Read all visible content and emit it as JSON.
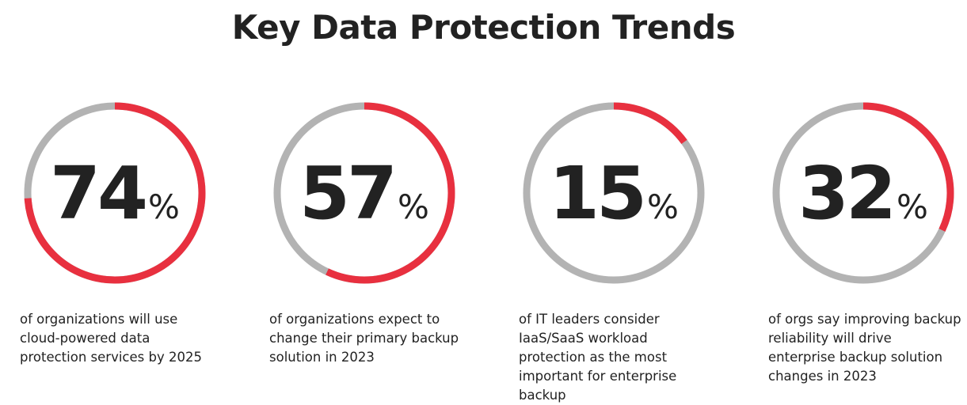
{
  "title": "Key Data Protection Trends",
  "chart_data": [
    {
      "type": "donut",
      "value": 74,
      "unit": "%",
      "caption": "of organizations will use cloud-powered data protection services by 2025",
      "color": "#e8303f",
      "track_color": "#b3b3b3"
    },
    {
      "type": "donut",
      "value": 57,
      "unit": "%",
      "caption": "of organizations expect to change their primary backup solution in 2023",
      "color": "#e8303f",
      "track_color": "#b3b3b3"
    },
    {
      "type": "donut",
      "value": 15,
      "unit": "%",
      "caption": "of IT leaders consider IaaS/SaaS workload protection as the most important for enterprise backup",
      "color": "#e8303f",
      "track_color": "#b3b3b3"
    },
    {
      "type": "donut",
      "value": 32,
      "unit": "%",
      "caption": "of orgs say improving backup reliability will drive enterprise backup solution changes in 2023",
      "color": "#e8303f",
      "track_color": "#b3b3b3"
    }
  ]
}
